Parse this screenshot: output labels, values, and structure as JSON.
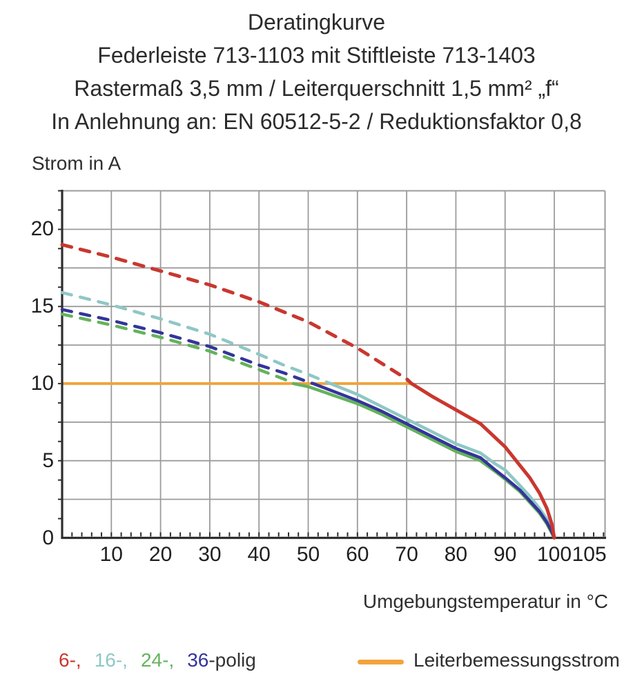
{
  "title": {
    "line1": "Deratingkurve",
    "line2": "Federleiste 713-1103 mit Stiftleiste 713-1403",
    "line3": "Rastermaß 3,5 mm / Leiterquerschnitt 1,5 mm² „f“",
    "line4": "In Anlehnung an: EN 60512-5-2 / Reduktionsfaktor 0,8"
  },
  "axes": {
    "y_label": "Strom in A",
    "x_label": "Umgebungstemperatur in °C"
  },
  "legend": {
    "series": [
      {
        "label": "6-,",
        "color": "#c9372f"
      },
      {
        "label": "16-,",
        "color": "#8ec7c6"
      },
      {
        "label": "24-,",
        "color": "#64b35c"
      },
      {
        "label": "36",
        "color": "#34349a"
      },
      {
        "label": "-polig",
        "color": "#333333"
      }
    ],
    "rated": {
      "label": "Leiterbemessungsstrom",
      "color": "#f1a33c"
    }
  },
  "chart_data": {
    "type": "line",
    "title": "Deratingkurve",
    "xlabel": "Umgebungstemperatur in °C",
    "ylabel": "Strom in A",
    "xlim": [
      0,
      110
    ],
    "ylim": [
      0,
      22.5
    ],
    "x_ticks": [
      10,
      20,
      30,
      40,
      50,
      60,
      70,
      80,
      90,
      100,
      105
    ],
    "x_tick_dx": {
      "105": 15
    },
    "y_ticks": [
      0,
      5,
      10,
      15,
      20
    ],
    "x_grid": [
      10,
      20,
      30,
      40,
      50,
      60,
      70,
      80,
      90,
      100
    ],
    "y_grid": [
      2.5,
      5,
      7.5,
      10,
      12.5,
      15,
      17.5,
      20
    ],
    "x_minor_step": 2,
    "y_minor_step": 1.25,
    "grid_color": "#9b9b9b",
    "axis_color": "#2e2e2e",
    "rated_line": {
      "name": "Leiterbemessungsstrom",
      "value": 10,
      "x_from": 0,
      "x_to": 71,
      "color": "#f1a33c"
    },
    "dash_note": "curves are dashed above the rated current (10 A) and solid below it",
    "draw_order": [
      2,
      1,
      3,
      0
    ],
    "series": [
      {
        "name": "6-polig",
        "color": "#c9372f",
        "width": 5,
        "solid_from": 71,
        "points": [
          [
            0,
            19.0
          ],
          [
            10,
            18.2
          ],
          [
            20,
            17.3
          ],
          [
            30,
            16.4
          ],
          [
            40,
            15.3
          ],
          [
            50,
            14.0
          ],
          [
            60,
            12.3
          ],
          [
            65,
            11.3
          ],
          [
            70,
            10.3
          ],
          [
            71,
            10.0
          ],
          [
            75,
            9.2
          ],
          [
            80,
            8.3
          ],
          [
            85,
            7.4
          ],
          [
            88,
            6.5
          ],
          [
            90,
            5.9
          ],
          [
            93,
            4.7
          ],
          [
            95,
            3.9
          ],
          [
            97,
            2.9
          ],
          [
            98.5,
            1.9
          ],
          [
            99.5,
            0.9
          ],
          [
            100,
            0
          ]
        ]
      },
      {
        "name": "16-polig",
        "color": "#8ec7c6",
        "width": 4.5,
        "solid_from": 54.5,
        "points": [
          [
            0,
            15.9
          ],
          [
            10,
            15.1
          ],
          [
            20,
            14.2
          ],
          [
            30,
            13.2
          ],
          [
            40,
            11.9
          ],
          [
            45,
            11.2
          ],
          [
            50,
            10.6
          ],
          [
            54.5,
            10.0
          ],
          [
            60,
            9.3
          ],
          [
            65,
            8.5
          ],
          [
            70,
            7.7
          ],
          [
            75,
            6.9
          ],
          [
            80,
            6.1
          ],
          [
            85,
            5.5
          ],
          [
            88,
            4.8
          ],
          [
            90,
            4.4
          ],
          [
            93,
            3.4
          ],
          [
            95,
            2.7
          ],
          [
            97,
            1.9
          ],
          [
            98.5,
            1.2
          ],
          [
            99.5,
            0.5
          ],
          [
            100,
            0
          ]
        ]
      },
      {
        "name": "24-polig",
        "color": "#64b35c",
        "width": 4.5,
        "solid_from": 47,
        "points": [
          [
            0,
            14.5
          ],
          [
            10,
            13.8
          ],
          [
            20,
            13.0
          ],
          [
            30,
            12.1
          ],
          [
            40,
            10.9
          ],
          [
            45,
            10.3
          ],
          [
            47,
            10.0
          ],
          [
            50,
            9.8
          ],
          [
            60,
            8.7
          ],
          [
            65,
            8.0
          ],
          [
            70,
            7.2
          ],
          [
            75,
            6.4
          ],
          [
            80,
            5.6
          ],
          [
            85,
            5.0
          ],
          [
            88,
            4.3
          ],
          [
            90,
            3.8
          ],
          [
            93,
            3.0
          ],
          [
            95,
            2.3
          ],
          [
            97,
            1.6
          ],
          [
            98.5,
            0.9
          ],
          [
            99.5,
            0.3
          ],
          [
            100,
            0
          ]
        ]
      },
      {
        "name": "36-polig",
        "color": "#34349a",
        "width": 4.5,
        "solid_from": 51,
        "points": [
          [
            0,
            14.8
          ],
          [
            10,
            14.1
          ],
          [
            20,
            13.3
          ],
          [
            30,
            12.4
          ],
          [
            40,
            11.2
          ],
          [
            45,
            10.7
          ],
          [
            50,
            10.1
          ],
          [
            51,
            10.0
          ],
          [
            60,
            8.9
          ],
          [
            65,
            8.2
          ],
          [
            70,
            7.4
          ],
          [
            75,
            6.6
          ],
          [
            80,
            5.8
          ],
          [
            85,
            5.2
          ],
          [
            88,
            4.4
          ],
          [
            90,
            3.9
          ],
          [
            93,
            3.1
          ],
          [
            95,
            2.4
          ],
          [
            97,
            1.7
          ],
          [
            98.5,
            1.0
          ],
          [
            99.5,
            0.4
          ],
          [
            100,
            0
          ]
        ]
      }
    ]
  }
}
